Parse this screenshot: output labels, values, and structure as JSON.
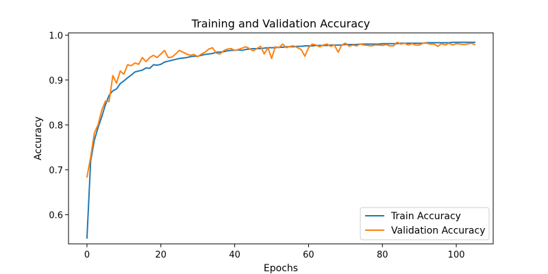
{
  "chart_data": {
    "type": "line",
    "title": "Training and Validation Accuracy",
    "xlabel": "Epochs",
    "ylabel": "Accuracy",
    "xlim": [
      -5,
      110
    ],
    "ylim": [
      0.535,
      1.005
    ],
    "xticks": [
      0,
      20,
      40,
      60,
      80,
      100
    ],
    "yticks": [
      0.6,
      0.7,
      0.8,
      0.9,
      1.0
    ],
    "xtick_labels": [
      "0",
      "20",
      "40",
      "60",
      "80",
      "100"
    ],
    "ytick_labels": [
      "0.6",
      "0.7",
      "0.8",
      "0.9",
      "1.0"
    ],
    "grid": false,
    "legend_position": "lower-right",
    "x_start": 0,
    "series": [
      {
        "name": "Train Accuracy",
        "color": "#1f77b4",
        "values": [
          0.548,
          0.72,
          0.766,
          0.794,
          0.818,
          0.845,
          0.866,
          0.876,
          0.88,
          0.892,
          0.898,
          0.905,
          0.911,
          0.918,
          0.92,
          0.922,
          0.927,
          0.926,
          0.934,
          0.933,
          0.935,
          0.94,
          0.942,
          0.944,
          0.946,
          0.948,
          0.949,
          0.95,
          0.952,
          0.953,
          0.953,
          0.955,
          0.957,
          0.958,
          0.959,
          0.962,
          0.962,
          0.963,
          0.965,
          0.966,
          0.966,
          0.967,
          0.966,
          0.968,
          0.969,
          0.97,
          0.97,
          0.97,
          0.971,
          0.972,
          0.972,
          0.972,
          0.973,
          0.973,
          0.974,
          0.974,
          0.974,
          0.975,
          0.975,
          0.976,
          0.976,
          0.976,
          0.977,
          0.977,
          0.977,
          0.977,
          0.978,
          0.978,
          0.978,
          0.978,
          0.979,
          0.979,
          0.979,
          0.979,
          0.98,
          0.98,
          0.98,
          0.98,
          0.98,
          0.98,
          0.981,
          0.981,
          0.981,
          0.981,
          0.981,
          0.982,
          0.982,
          0.982,
          0.982,
          0.982,
          0.982,
          0.982,
          0.983,
          0.983,
          0.983,
          0.983,
          0.983,
          0.983,
          0.983,
          0.984,
          0.984,
          0.984,
          0.984,
          0.984,
          0.984,
          0.984
        ]
      },
      {
        "name": "Validation Accuracy",
        "color": "#ff7f0e",
        "values": [
          0.684,
          0.728,
          0.782,
          0.8,
          0.833,
          0.853,
          0.852,
          0.91,
          0.893,
          0.92,
          0.913,
          0.934,
          0.932,
          0.938,
          0.935,
          0.95,
          0.941,
          0.95,
          0.955,
          0.95,
          0.958,
          0.966,
          0.95,
          0.951,
          0.958,
          0.966,
          0.962,
          0.958,
          0.955,
          0.957,
          0.952,
          0.958,
          0.962,
          0.969,
          0.972,
          0.96,
          0.958,
          0.965,
          0.969,
          0.97,
          0.966,
          0.968,
          0.971,
          0.974,
          0.97,
          0.965,
          0.97,
          0.975,
          0.958,
          0.972,
          0.948,
          0.974,
          0.972,
          0.98,
          0.972,
          0.975,
          0.976,
          0.972,
          0.968,
          0.953,
          0.972,
          0.98,
          0.978,
          0.974,
          0.978,
          0.98,
          0.975,
          0.978,
          0.962,
          0.978,
          0.982,
          0.975,
          0.978,
          0.976,
          0.98,
          0.978,
          0.977,
          0.976,
          0.978,
          0.978,
          0.977,
          0.979,
          0.976,
          0.976,
          0.984,
          0.98,
          0.982,
          0.978,
          0.981,
          0.978,
          0.978,
          0.982,
          0.982,
          0.98,
          0.98,
          0.975,
          0.981,
          0.978,
          0.982,
          0.978,
          0.981,
          0.98,
          0.979,
          0.98,
          0.982,
          0.979
        ]
      }
    ]
  }
}
